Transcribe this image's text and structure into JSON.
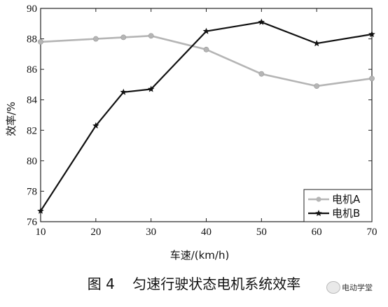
{
  "chart_data": {
    "type": "line",
    "title": "",
    "xlabel": "车速/(km/h)",
    "ylabel": "效率/%",
    "xlim": [
      10,
      70
    ],
    "ylim": [
      76,
      90
    ],
    "xticks": [
      10,
      20,
      30,
      40,
      50,
      60,
      70
    ],
    "yticks": [
      76,
      78,
      80,
      82,
      84,
      86,
      88,
      90
    ],
    "grid": false,
    "legend_position": "bottom-right",
    "series": [
      {
        "name": "电机A",
        "color": "#b5b5b5",
        "marker": "circle",
        "x": [
          10,
          20,
          25,
          30,
          40,
          50,
          60,
          70
        ],
        "y": [
          87.8,
          88.0,
          88.1,
          88.2,
          87.3,
          85.7,
          84.9,
          85.4
        ]
      },
      {
        "name": "电机B",
        "color": "#111111",
        "marker": "star",
        "x": [
          10,
          20,
          25,
          30,
          40,
          50,
          60,
          70
        ],
        "y": [
          76.7,
          82.3,
          84.5,
          84.7,
          88.5,
          89.1,
          87.7,
          88.3
        ]
      }
    ]
  },
  "caption": {
    "figure_label": "图 4",
    "title": "匀速行驶状态电机系统效率"
  },
  "watermark": {
    "icon": "wechat-icon",
    "text": "电动学堂"
  }
}
